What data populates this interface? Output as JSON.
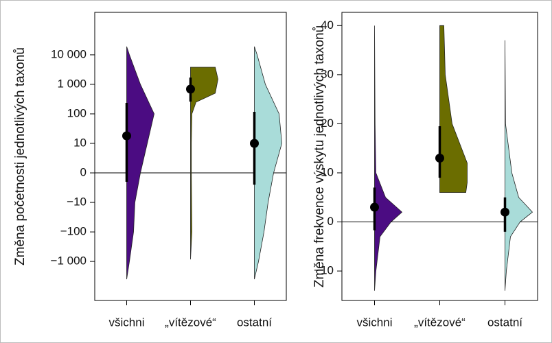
{
  "chart_data": [
    {
      "type": "violin",
      "ylabel": "Změna početnosti jednotlivých taxonů",
      "categories": [
        "všichni",
        "„vítězové“",
        "ostatní"
      ],
      "yscale": "symlog",
      "ylim": [
        -21000,
        275000
      ],
      "hline": 0,
      "yticks": [
        {
          "value": -1000,
          "label": "−1 000"
        },
        {
          "value": -100,
          "label": "−100"
        },
        {
          "value": -10,
          "label": "−10"
        },
        0,
        10,
        100,
        {
          "value": 1000,
          "label": "1 000"
        },
        {
          "value": 10000,
          "label": "10 000"
        }
      ],
      "violins": [
        {
          "color": "#4b0c82",
          "median": 18,
          "interval": [
            -3,
            235
          ],
          "profile": {
            "y": [
              19000,
              10000,
              1000,
              100,
              10,
              0,
              -10,
              -100,
              -1000,
              -4000
            ],
            "width": [
              0,
              0.1,
              0.5,
              1.0,
              0.75,
              0.5,
              0.3,
              0.25,
              0.1,
              0
            ]
          }
        },
        {
          "color": "#6b6d00",
          "median": 690,
          "interval": [
            260,
            1700
          ],
          "profile": {
            "y": [
              3800,
              3800,
              1500,
              500,
              250,
              100,
              10,
              0,
              -10,
              -100,
              -850
            ],
            "width": [
              0,
              0.9,
              1.0,
              0.9,
              0.2,
              0.05,
              0.03,
              0.03,
              0.04,
              0.05,
              0
            ]
          }
        },
        {
          "color": "#a9dcd9",
          "median": 10,
          "interval": [
            -4,
            117
          ],
          "profile": {
            "y": [
              19000,
              10000,
              1000,
              100,
              10,
              0,
              -10,
              -100,
              -1000,
              -4000
            ],
            "width": [
              0,
              0.1,
              0.4,
              0.9,
              1.0,
              0.7,
              0.5,
              0.35,
              0.15,
              0
            ]
          }
        }
      ]
    },
    {
      "type": "violin",
      "ylabel": "Změna frekvence výskytu jednotlivých taxonů",
      "categories": [
        "všichni",
        "„vítězové“",
        "ostatní"
      ],
      "yscale": "linear",
      "ylim": [
        -16,
        42.7
      ],
      "hline": 0,
      "yticks": [
        {
          "value": -10,
          "label": "−10"
        },
        0,
        10,
        20,
        30,
        40
      ],
      "violins": [
        {
          "color": "#4b0c82",
          "median": 3,
          "interval": [
            -1.7,
            7
          ],
          "profile": {
            "y": [
              40,
              20,
              10,
              5,
              2,
              0,
              -3,
              -10,
              -14
            ],
            "width": [
              0,
              0.02,
              0.05,
              0.4,
              1.0,
              0.6,
              0.2,
              0.05,
              0
            ]
          }
        },
        {
          "color": "#6b6d00",
          "median": 13,
          "interval": [
            9,
            19.5
          ],
          "profile": {
            "y": [
              40,
              40,
              30,
              20,
              12,
              8,
              6,
              6
            ],
            "width": [
              0,
              0.15,
              0.2,
              0.45,
              1.0,
              1.0,
              0.95,
              0
            ]
          }
        },
        {
          "color": "#a9dcd9",
          "median": 2,
          "interval": [
            -2,
            5
          ],
          "profile": {
            "y": [
              37,
              20,
              10,
              5,
              2,
              0,
              -3,
              -10,
              -14
            ],
            "width": [
              0,
              0.02,
              0.25,
              0.5,
              1.0,
              0.55,
              0.2,
              0.05,
              0
            ]
          }
        }
      ]
    }
  ]
}
